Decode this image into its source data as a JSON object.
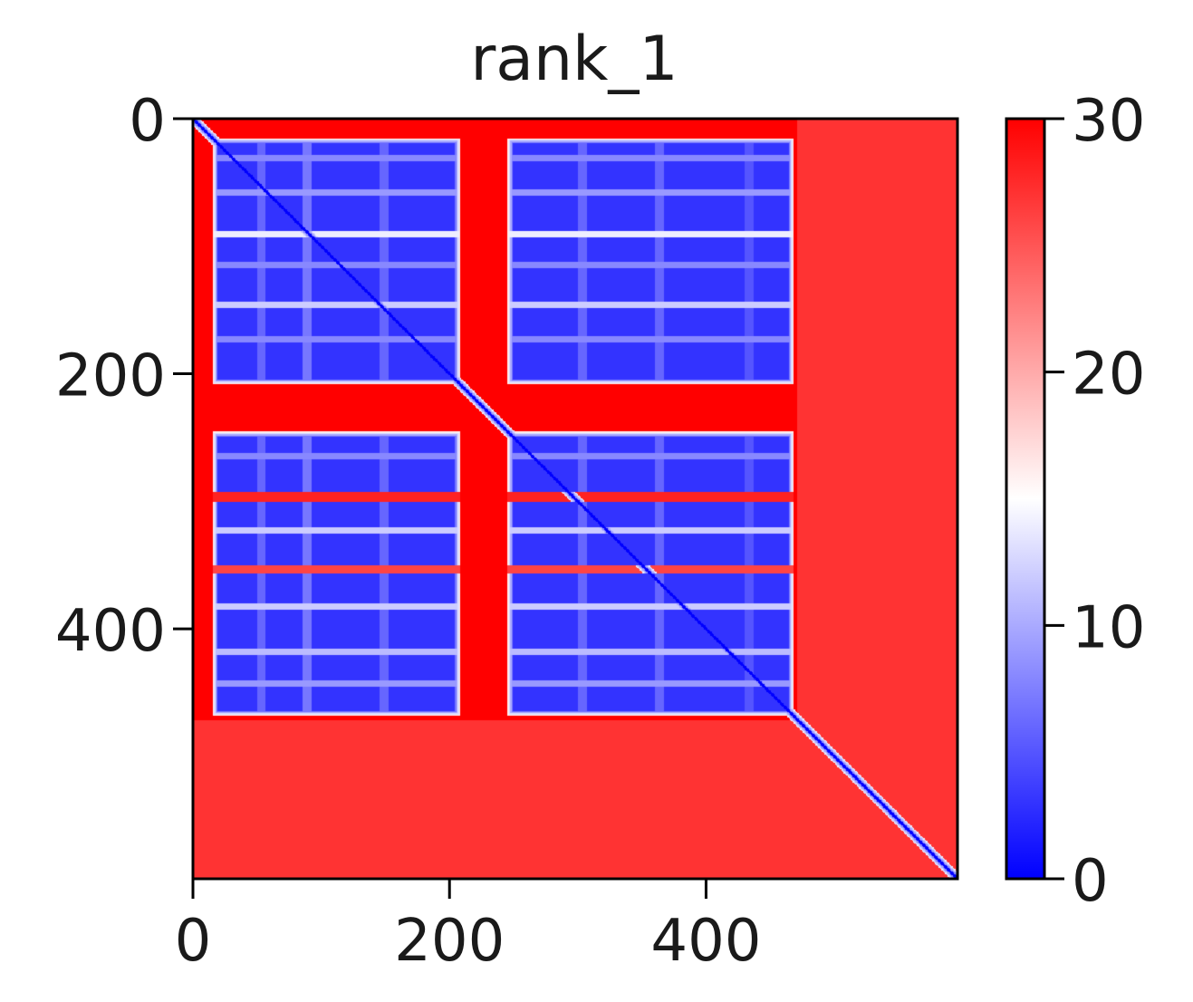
{
  "chart_data": {
    "type": "heatmap",
    "title": "rank_1",
    "xlabel": "",
    "ylabel": "",
    "size": 596,
    "x_ticks": [
      0,
      200,
      400
    ],
    "y_ticks": [
      0,
      200,
      400
    ],
    "xlim": [
      0,
      596
    ],
    "ylim": [
      596,
      0
    ],
    "colormap": "bwr",
    "colorbar": {
      "min": 0,
      "max": 30,
      "ticks": [
        0,
        10,
        20,
        30
      ],
      "colors": [
        "#0000ff",
        "#ffffff",
        "#ff0000"
      ]
    },
    "diagonal_value": 0,
    "background_value": 30,
    "domain_boundaries": [
      {
        "start": 15,
        "end": 208
      },
      {
        "start": 208,
        "end": 245
      },
      {
        "start": 245,
        "end": 468
      },
      {
        "start": 468,
        "end": 596
      }
    ],
    "segments": [
      {
        "start": 15,
        "end": 208
      },
      {
        "start": 245,
        "end": 468
      }
    ],
    "segment_block_value": 3,
    "stripes_row": [
      {
        "start": 28,
        "end": 33,
        "value": 8
      },
      {
        "start": 55,
        "end": 60,
        "value": 9
      },
      {
        "start": 88,
        "end": 93,
        "value": 14
      },
      {
        "start": 112,
        "end": 117,
        "value": 8
      },
      {
        "start": 143,
        "end": 148,
        "value": 12
      },
      {
        "start": 170,
        "end": 175,
        "value": 8
      },
      {
        "start": 208,
        "end": 245,
        "value": 30
      },
      {
        "start": 262,
        "end": 267,
        "value": 8
      },
      {
        "start": 292,
        "end": 300,
        "value": 28
      },
      {
        "start": 320,
        "end": 325,
        "value": 12
      },
      {
        "start": 350,
        "end": 356,
        "value": 26
      },
      {
        "start": 380,
        "end": 385,
        "value": 12
      },
      {
        "start": 415,
        "end": 420,
        "value": 11
      },
      {
        "start": 440,
        "end": 445,
        "value": 9
      }
    ],
    "stripes_col": [
      {
        "start": 50,
        "end": 56,
        "value": 6
      },
      {
        "start": 85,
        "end": 92,
        "value": 7
      },
      {
        "start": 145,
        "end": 152,
        "value": 6
      },
      {
        "start": 208,
        "end": 245,
        "value": 30
      },
      {
        "start": 300,
        "end": 307,
        "value": 6
      },
      {
        "start": 360,
        "end": 367,
        "value": 6
      },
      {
        "start": 430,
        "end": 437,
        "value": 5
      }
    ]
  }
}
